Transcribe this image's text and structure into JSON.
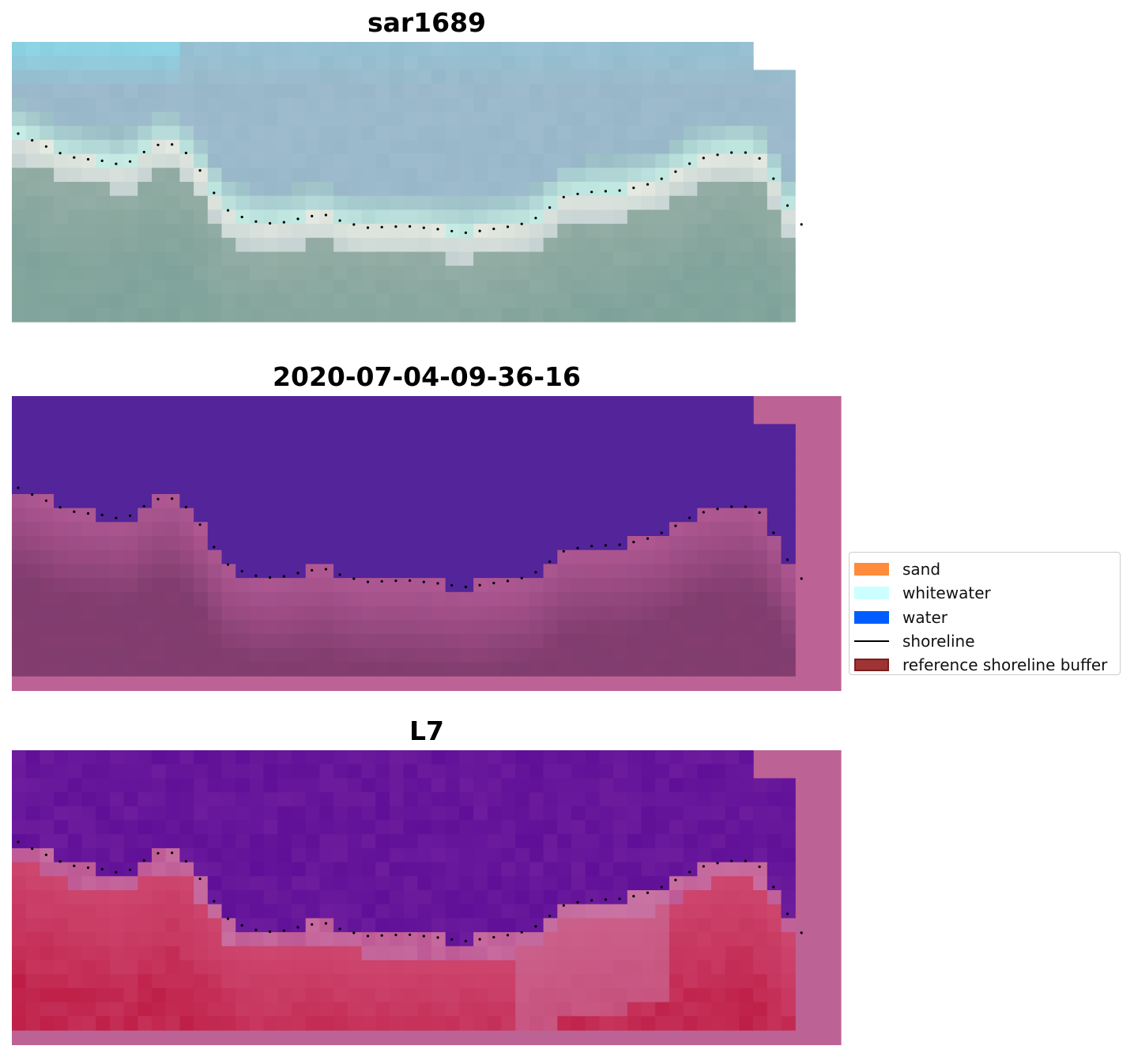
{
  "panels": [
    {
      "title": "sar1689",
      "style": "rgb"
    },
    {
      "title": "2020-07-04-09-36-16",
      "style": "classified"
    },
    {
      "title": "L7",
      "style": "index"
    }
  ],
  "legend": {
    "placement": "right",
    "items": [
      {
        "label": "sand",
        "kind": "patch",
        "color": "#ff8c3c"
      },
      {
        "label": "whitewater",
        "kind": "patch",
        "color": "#ccffff"
      },
      {
        "label": "water",
        "kind": "patch",
        "color": "#005eff"
      },
      {
        "label": "shoreline",
        "kind": "line",
        "color": "#000000"
      },
      {
        "label": "reference shoreline buffer",
        "kind": "patch",
        "color": "#9e3434",
        "edge": "#7a1f1f"
      }
    ]
  },
  "colors": {
    "buffer": "#bd6295",
    "water_class": "#53249a",
    "shoreline_dots": "#000000"
  }
}
